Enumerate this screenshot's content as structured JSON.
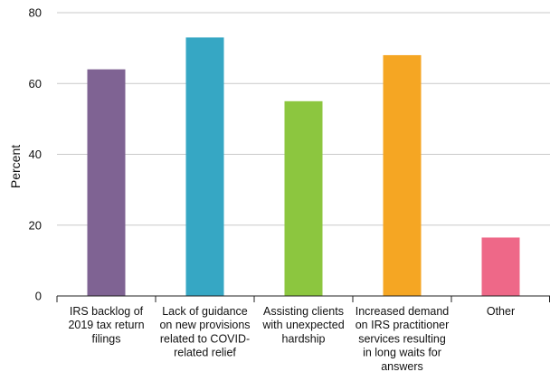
{
  "chart_data": {
    "type": "bar",
    "categories": [
      [
        "IRS backlog of",
        "2019 tax return",
        "filings"
      ],
      [
        "Lack of guidance",
        "on new provisions",
        "related to COVID-",
        "related relief"
      ],
      [
        "Assisting clients",
        "with unexpected",
        "hardship"
      ],
      [
        "Increased demand",
        "on IRS practitioner",
        "services resulting",
        "in long waits for",
        "answers"
      ],
      [
        "Other"
      ]
    ],
    "values": [
      64,
      73,
      55,
      68,
      16.5
    ],
    "colors": [
      "#7f6393",
      "#36a7c4",
      "#8cc63f",
      "#f5a623",
      "#ee6888"
    ],
    "ylabel": "Percent",
    "ylim": [
      0,
      80
    ],
    "yticks": [
      0,
      20,
      40,
      60,
      80
    ],
    "grid": true
  }
}
